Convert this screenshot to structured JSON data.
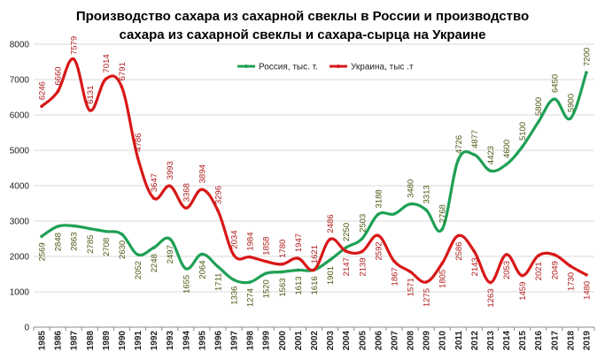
{
  "chart_data": {
    "type": "line",
    "title_line1": "Производство сахара из сахарной свеклы в России и производство",
    "title_line2": "сахара из сахарной свеклы и сахара-сырца на Украине",
    "xlabel": "",
    "ylabel": "",
    "ylim": [
      0,
      8000
    ],
    "yticks": [
      "0",
      "1000",
      "2000",
      "3000",
      "4000",
      "5000",
      "6000",
      "7000",
      "8000"
    ],
    "grid": true,
    "legend_position": "top-right",
    "categories": [
      "1985",
      "1986",
      "1987",
      "1988",
      "1989",
      "1990",
      "1991",
      "1992",
      "1993",
      "1994",
      "1995",
      "1996",
      "1997",
      "1998",
      "1999",
      "2000",
      "2001",
      "2002",
      "2003",
      "2004",
      "2005",
      "2006",
      "2007",
      "2008",
      "2009",
      "2010",
      "2011",
      "2012",
      "2013",
      "2014",
      "2015",
      "2016",
      "2017",
      "2018",
      "2019"
    ],
    "series": [
      {
        "name": "Россия, тыс. т.",
        "color": "#1fa055",
        "label_color": "#4a5a14",
        "values": [
          2569,
          2848,
          2863,
          2785,
          2708,
          2630,
          2052,
          2248,
          2497,
          1655,
          2064,
          1711,
          1336,
          1274,
          1520,
          1563,
          1613,
          1616,
          1901,
          2250,
          2503,
          3188,
          3200,
          3480,
          3313,
          2768,
          4726,
          4877,
          4423,
          4600,
          5100,
          5800,
          6450,
          5900,
          7200
        ],
        "labels": [
          "2569",
          "2848",
          "2863",
          "2785",
          "2708",
          "2630",
          "2052",
          "2248",
          "2497",
          "1655",
          "2064",
          "1711",
          "1336",
          "1274",
          "1520",
          "1563",
          "1613",
          "1616",
          "1901",
          "2250",
          "2503",
          "3188",
          "",
          "3480",
          "3313",
          "2768",
          "4726",
          "4877",
          "4423",
          "4600",
          "5100",
          "5800",
          "6450",
          "5900",
          "7200"
        ]
      },
      {
        "name": "Украина, тыс .т",
        "color": "#d81818",
        "label_color": "#b01a1a",
        "values": [
          6246,
          6660,
          7579,
          6131,
          7014,
          6791,
          4786,
          3647,
          3993,
          3368,
          3894,
          3296,
          2034,
          1984,
          1858,
          1780,
          1947,
          1621,
          2486,
          2147,
          2139,
          2592,
          1867,
          1571,
          1275,
          1805,
          2586,
          2143,
          1263,
          2053,
          1459,
          2021,
          2049,
          1730,
          1480
        ],
        "labels": [
          "6246",
          "6660",
          "7579",
          "6131",
          "7014",
          "6791",
          "4786",
          "3647",
          "3993",
          "3368",
          "3894",
          "3296",
          "2034",
          "1984",
          "1858",
          "1780",
          "1947",
          "1621",
          "2486",
          "2147",
          "2139",
          "2592",
          "1867",
          "1571",
          "1275",
          "1805",
          "2586",
          "2143",
          "1263",
          "2053",
          "1459",
          "2021",
          "2049",
          "1730",
          "1480"
        ]
      }
    ]
  }
}
